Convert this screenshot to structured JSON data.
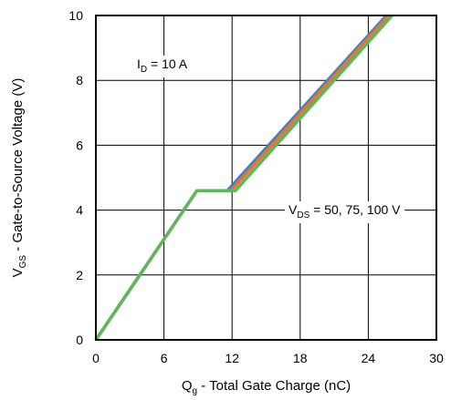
{
  "chart_data": {
    "type": "line",
    "xlabel_main": "Q",
    "xlabel_sub": "g",
    "xlabel_rest": " - Total Gate Charge (nC)",
    "ylabel_main": "V",
    "ylabel_sub": "GS",
    "ylabel_rest": " - Gate-to-Source Voltage (V)",
    "xlim": [
      0,
      30
    ],
    "ylim": [
      0,
      10
    ],
    "xticks": [
      0,
      6,
      12,
      18,
      24,
      30
    ],
    "yticks": [
      0,
      2,
      4,
      6,
      8,
      10
    ],
    "grid": true,
    "annotations": {
      "id_main": "I",
      "id_sub": "D",
      "id_rest": " = 10 A",
      "vds_main": "V",
      "vds_sub": "DS",
      "vds_rest": " = 50, 75, 100 V"
    },
    "series": [
      {
        "color": "#4a7fc1",
        "x": [
          0,
          8.9,
          11.6,
          25.6
        ],
        "y": [
          0,
          4.6,
          4.6,
          10
        ]
      },
      {
        "color": "#e8762d",
        "x": [
          0,
          8.9,
          11.9,
          25.8
        ],
        "y": [
          0,
          4.6,
          4.6,
          10
        ]
      },
      {
        "color": "#5cb85c",
        "x": [
          0,
          8.9,
          12.3,
          26.1
        ],
        "y": [
          0,
          4.6,
          4.6,
          10
        ]
      }
    ]
  }
}
